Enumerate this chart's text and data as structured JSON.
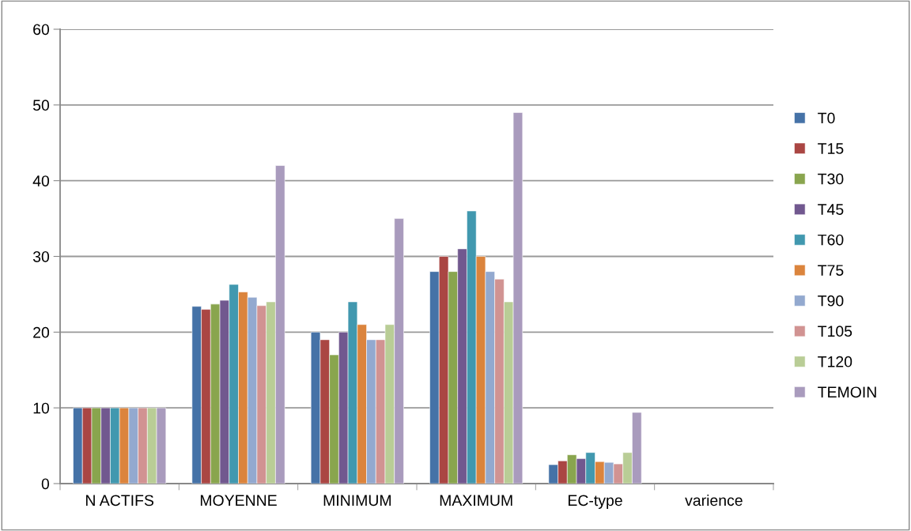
{
  "chart_data": {
    "type": "bar",
    "categories": [
      "N ACTIFS",
      "MOYENNE",
      "MINIMUM",
      "MAXIMUM",
      "EC-type",
      "varience"
    ],
    "series": [
      {
        "name": "T0",
        "color": "#4572a7",
        "values": [
          10,
          23.4,
          20,
          28,
          2.5,
          null
        ]
      },
      {
        "name": "T15",
        "color": "#aa4643",
        "values": [
          10,
          23.0,
          19,
          30,
          3.0,
          null
        ]
      },
      {
        "name": "T30",
        "color": "#89a54e",
        "values": [
          10,
          23.7,
          17,
          28,
          3.8,
          null
        ]
      },
      {
        "name": "T45",
        "color": "#71588f",
        "values": [
          10,
          24.2,
          20,
          31,
          3.3,
          null
        ]
      },
      {
        "name": "T60",
        "color": "#4198af",
        "values": [
          10,
          26.3,
          24,
          36,
          4.1,
          null
        ]
      },
      {
        "name": "T75",
        "color": "#db843d",
        "values": [
          10,
          25.3,
          21,
          30,
          2.9,
          null
        ]
      },
      {
        "name": "T90",
        "color": "#93a9cf",
        "values": [
          10,
          24.6,
          19,
          28,
          2.8,
          null
        ]
      },
      {
        "name": "T105",
        "color": "#d19392",
        "values": [
          10,
          23.5,
          19,
          27,
          2.6,
          null
        ]
      },
      {
        "name": "T120",
        "color": "#b9cd96",
        "values": [
          10,
          24.0,
          21,
          24,
          4.1,
          null
        ]
      },
      {
        "name": "TEMOIN",
        "color": "#a99bbd",
        "values": [
          10,
          42.0,
          35,
          49,
          9.4,
          null
        ]
      }
    ],
    "ylim": [
      0,
      60
    ],
    "yticks": [
      0,
      10,
      20,
      30,
      40,
      50,
      60
    ],
    "grid": "y",
    "legend": "right"
  }
}
